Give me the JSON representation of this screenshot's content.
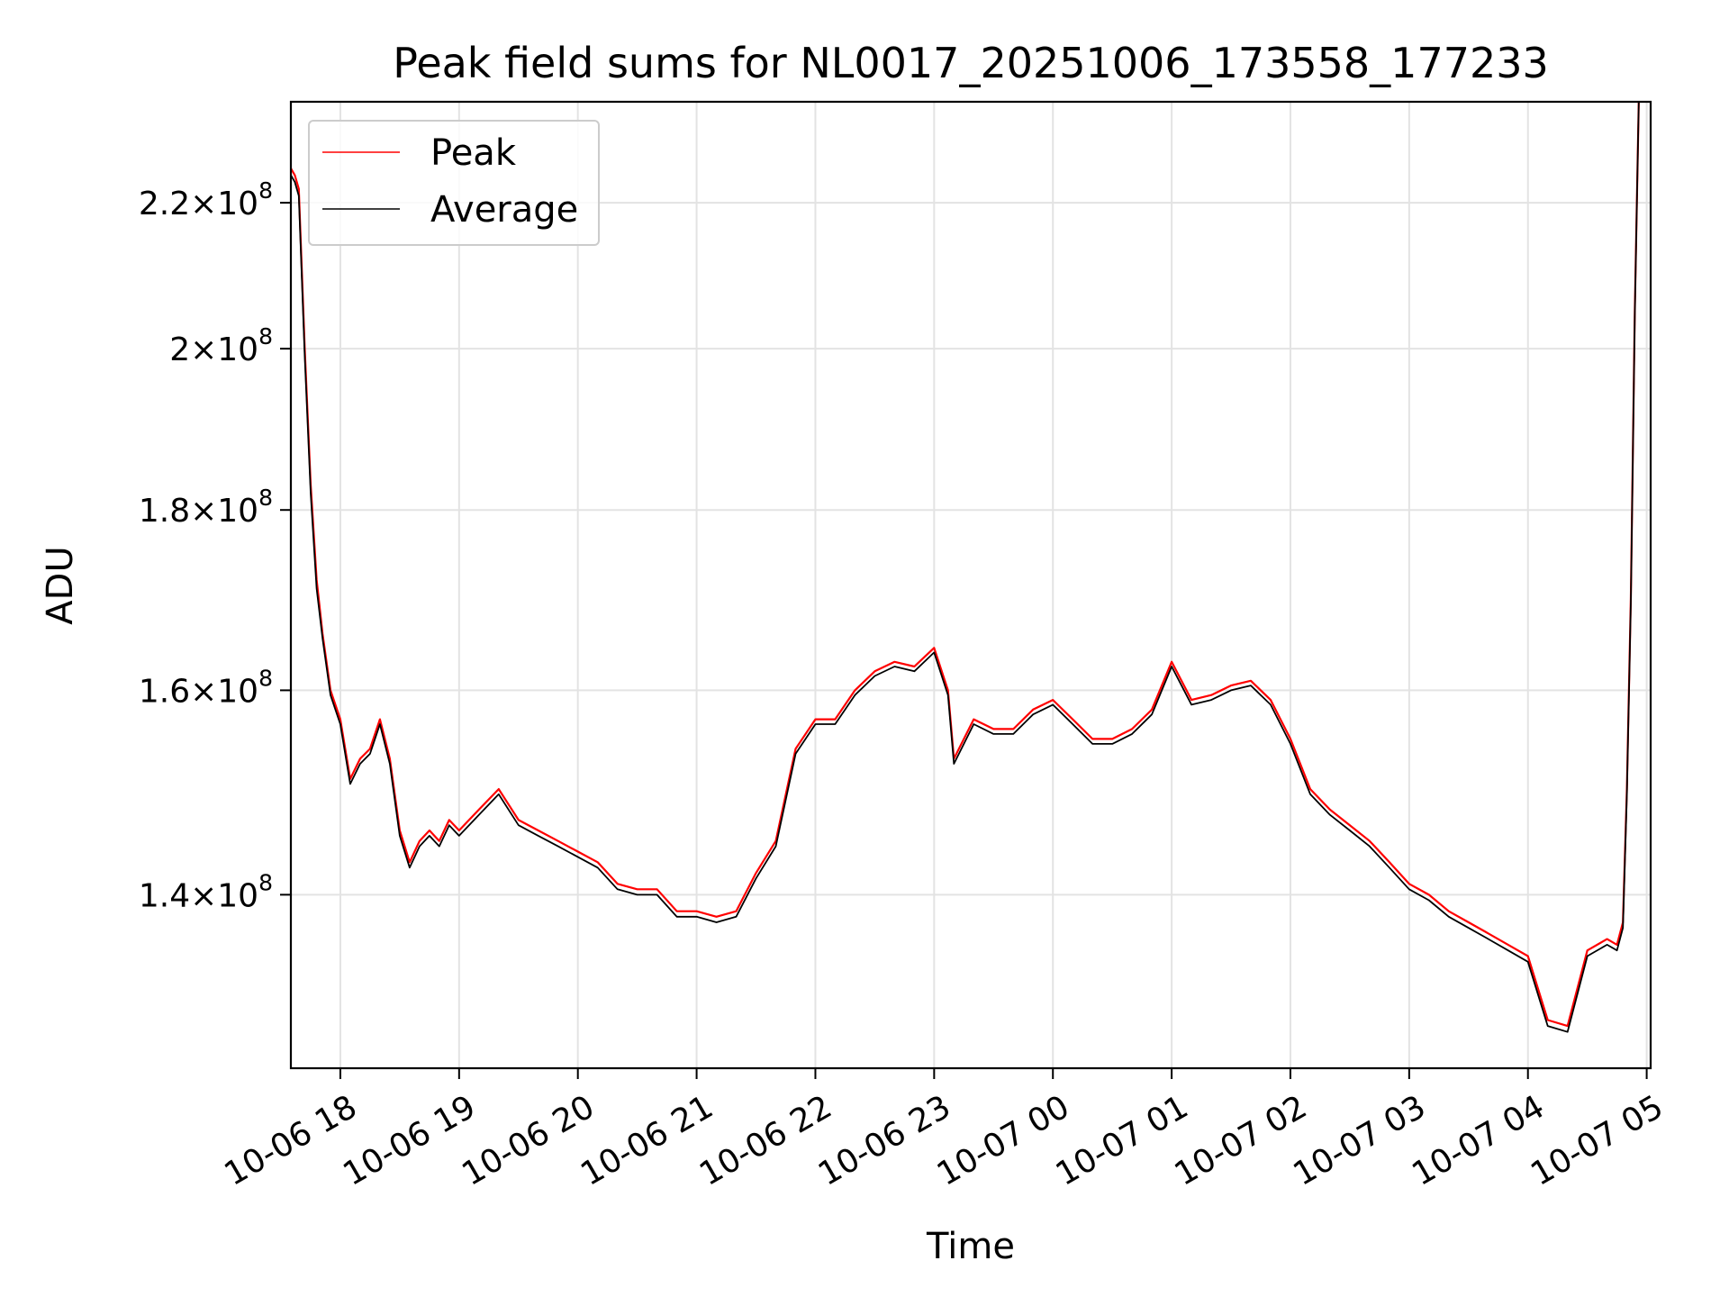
{
  "chart_data": {
    "type": "line",
    "title": "Peak field sums for NL0017_20251006_173558_177233",
    "xlabel": "Time",
    "ylabel": "ADU",
    "y_scale": "log",
    "ylim": [
      125000000,
      235000000
    ],
    "xlim": [
      "2025-10-06 17:35",
      "2025-10-07 05:02"
    ],
    "grid": true,
    "legend_position": "upper left",
    "x_ticks": [
      {
        "t": "2025-10-06 18:00",
        "label": "10-06 18"
      },
      {
        "t": "2025-10-06 19:00",
        "label": "10-06 19"
      },
      {
        "t": "2025-10-06 20:00",
        "label": "10-06 20"
      },
      {
        "t": "2025-10-06 21:00",
        "label": "10-06 21"
      },
      {
        "t": "2025-10-06 22:00",
        "label": "10-06 22"
      },
      {
        "t": "2025-10-06 23:00",
        "label": "10-06 23"
      },
      {
        "t": "2025-10-07 00:00",
        "label": "10-07 00"
      },
      {
        "t": "2025-10-07 01:00",
        "label": "10-07 01"
      },
      {
        "t": "2025-10-07 02:00",
        "label": "10-07 02"
      },
      {
        "t": "2025-10-07 03:00",
        "label": "10-07 03"
      },
      {
        "t": "2025-10-07 04:00",
        "label": "10-07 04"
      },
      {
        "t": "2025-10-07 05:00",
        "label": "10-07 05"
      }
    ],
    "y_ticks": [
      {
        "value": 140000000,
        "mantissa": "1.4",
        "exponent": "8"
      },
      {
        "value": 160000000,
        "mantissa": "1.6",
        "exponent": "8"
      },
      {
        "value": 180000000,
        "mantissa": "1.8",
        "exponent": "8"
      },
      {
        "value": 200000000,
        "mantissa": "2",
        "exponent": "8"
      },
      {
        "value": 220000000,
        "mantissa": "2.2",
        "exponent": "8"
      }
    ],
    "series": [
      {
        "name": "Peak",
        "color": "#ff0000",
        "x": [
          "2025-10-06 17:35",
          "2025-10-06 17:37",
          "2025-10-06 17:39",
          "2025-10-06 17:42",
          "2025-10-06 17:45",
          "2025-10-06 17:48",
          "2025-10-06 17:51",
          "2025-10-06 17:55",
          "2025-10-06 18:00",
          "2025-10-06 18:05",
          "2025-10-06 18:10",
          "2025-10-06 18:15",
          "2025-10-06 18:20",
          "2025-10-06 18:25",
          "2025-10-06 18:30",
          "2025-10-06 18:35",
          "2025-10-06 18:40",
          "2025-10-06 18:45",
          "2025-10-06 18:50",
          "2025-10-06 18:55",
          "2025-10-06 19:00",
          "2025-10-06 19:10",
          "2025-10-06 19:20",
          "2025-10-06 19:30",
          "2025-10-06 19:40",
          "2025-10-06 19:50",
          "2025-10-06 20:00",
          "2025-10-06 20:10",
          "2025-10-06 20:20",
          "2025-10-06 20:30",
          "2025-10-06 20:40",
          "2025-10-06 20:50",
          "2025-10-06 21:00",
          "2025-10-06 21:10",
          "2025-10-06 21:20",
          "2025-10-06 21:30",
          "2025-10-06 21:40",
          "2025-10-06 21:50",
          "2025-10-06 22:00",
          "2025-10-06 22:10",
          "2025-10-06 22:20",
          "2025-10-06 22:30",
          "2025-10-06 22:40",
          "2025-10-06 22:50",
          "2025-10-06 23:00",
          "2025-10-06 23:07",
          "2025-10-06 23:10",
          "2025-10-06 23:20",
          "2025-10-06 23:30",
          "2025-10-06 23:40",
          "2025-10-06 23:50",
          "2025-10-07 00:00",
          "2025-10-07 00:10",
          "2025-10-07 00:20",
          "2025-10-07 00:30",
          "2025-10-07 00:40",
          "2025-10-07 00:50",
          "2025-10-07 01:00",
          "2025-10-07 01:10",
          "2025-10-07 01:20",
          "2025-10-07 01:30",
          "2025-10-07 01:40",
          "2025-10-07 01:50",
          "2025-10-07 02:00",
          "2025-10-07 02:10",
          "2025-10-07 02:20",
          "2025-10-07 02:30",
          "2025-10-07 02:40",
          "2025-10-07 02:50",
          "2025-10-07 03:00",
          "2025-10-07 03:10",
          "2025-10-07 03:20",
          "2025-10-07 03:30",
          "2025-10-07 03:40",
          "2025-10-07 03:50",
          "2025-10-07 04:00",
          "2025-10-07 04:10",
          "2025-10-07 04:20",
          "2025-10-07 04:30",
          "2025-10-07 04:40",
          "2025-10-07 04:45",
          "2025-10-07 04:48",
          "2025-10-07 04:50",
          "2025-10-07 04:52",
          "2025-10-07 04:54",
          "2025-10-07 04:56"
        ],
        "values": [
          225000000,
          224000000,
          222000000,
          200000000,
          183000000,
          172000000,
          166000000,
          160000000,
          157000000,
          151000000,
          153000000,
          154000000,
          157000000,
          153000000,
          146000000,
          143000000,
          145000000,
          146000000,
          145000000,
          147000000,
          146000000,
          148000000,
          150000000,
          147000000,
          146000000,
          145000000,
          144000000,
          143000000,
          141000000,
          140500000,
          140500000,
          138500000,
          138500000,
          138000000,
          138500000,
          142000000,
          145000000,
          154000000,
          157000000,
          157000000,
          160000000,
          162000000,
          163000000,
          162500000,
          164500000,
          160000000,
          153000000,
          157000000,
          156000000,
          156000000,
          158000000,
          159000000,
          157000000,
          155000000,
          155000000,
          156000000,
          158000000,
          163000000,
          159000000,
          159500000,
          160500000,
          161000000,
          159000000,
          155000000,
          150000000,
          148000000,
          146500000,
          145000000,
          143000000,
          141000000,
          140000000,
          138500000,
          137500000,
          136500000,
          135500000,
          134500000,
          129000000,
          128500000,
          135000000,
          136000000,
          135500000,
          137500000,
          150000000,
          170000000,
          205000000,
          235000000
        ]
      },
      {
        "name": "Average",
        "color": "#000000",
        "x": [
          "2025-10-06 17:35",
          "2025-10-06 17:37",
          "2025-10-06 17:39",
          "2025-10-06 17:42",
          "2025-10-06 17:45",
          "2025-10-06 17:48",
          "2025-10-06 17:51",
          "2025-10-06 17:55",
          "2025-10-06 18:00",
          "2025-10-06 18:05",
          "2025-10-06 18:10",
          "2025-10-06 18:15",
          "2025-10-06 18:20",
          "2025-10-06 18:25",
          "2025-10-06 18:30",
          "2025-10-06 18:35",
          "2025-10-06 18:40",
          "2025-10-06 18:45",
          "2025-10-06 18:50",
          "2025-10-06 18:55",
          "2025-10-06 19:00",
          "2025-10-06 19:10",
          "2025-10-06 19:20",
          "2025-10-06 19:30",
          "2025-10-06 19:40",
          "2025-10-06 19:50",
          "2025-10-06 20:00",
          "2025-10-06 20:10",
          "2025-10-06 20:20",
          "2025-10-06 20:30",
          "2025-10-06 20:40",
          "2025-10-06 20:50",
          "2025-10-06 21:00",
          "2025-10-06 21:10",
          "2025-10-06 21:20",
          "2025-10-06 21:30",
          "2025-10-06 21:40",
          "2025-10-06 21:50",
          "2025-10-06 22:00",
          "2025-10-06 22:10",
          "2025-10-06 22:20",
          "2025-10-06 22:30",
          "2025-10-06 22:40",
          "2025-10-06 22:50",
          "2025-10-06 23:00",
          "2025-10-06 23:07",
          "2025-10-06 23:10",
          "2025-10-06 23:20",
          "2025-10-06 23:30",
          "2025-10-06 23:40",
          "2025-10-06 23:50",
          "2025-10-07 00:00",
          "2025-10-07 00:10",
          "2025-10-07 00:20",
          "2025-10-07 00:30",
          "2025-10-07 00:40",
          "2025-10-07 00:50",
          "2025-10-07 01:00",
          "2025-10-07 01:10",
          "2025-10-07 01:20",
          "2025-10-07 01:30",
          "2025-10-07 01:40",
          "2025-10-07 01:50",
          "2025-10-07 02:00",
          "2025-10-07 02:10",
          "2025-10-07 02:20",
          "2025-10-07 02:30",
          "2025-10-07 02:40",
          "2025-10-07 02:50",
          "2025-10-07 03:00",
          "2025-10-07 03:10",
          "2025-10-07 03:20",
          "2025-10-07 03:30",
          "2025-10-07 03:40",
          "2025-10-07 03:50",
          "2025-10-07 04:00",
          "2025-10-07 04:10",
          "2025-10-07 04:20",
          "2025-10-07 04:30",
          "2025-10-07 04:40",
          "2025-10-07 04:45",
          "2025-10-07 04:48",
          "2025-10-07 04:50",
          "2025-10-07 04:52",
          "2025-10-07 04:54",
          "2025-10-07 04:56"
        ],
        "values": [
          224000000,
          223000000,
          221000000,
          199000000,
          182000000,
          171000000,
          165500000,
          159500000,
          156500000,
          150500000,
          152500000,
          153500000,
          156500000,
          152500000,
          145500000,
          142500000,
          144500000,
          145500000,
          144500000,
          146500000,
          145500000,
          147500000,
          149500000,
          146500000,
          145500000,
          144500000,
          143500000,
          142500000,
          140500000,
          140000000,
          140000000,
          138000000,
          138000000,
          137500000,
          138000000,
          141500000,
          144500000,
          153500000,
          156500000,
          156500000,
          159500000,
          161500000,
          162500000,
          162000000,
          164000000,
          159500000,
          152500000,
          156500000,
          155500000,
          155500000,
          157500000,
          158500000,
          156500000,
          154500000,
          154500000,
          155500000,
          157500000,
          162500000,
          158500000,
          159000000,
          160000000,
          160500000,
          158500000,
          154500000,
          149500000,
          147500000,
          146000000,
          144500000,
          142500000,
          140500000,
          139500000,
          138000000,
          137000000,
          136000000,
          135000000,
          134000000,
          128500000,
          128000000,
          134500000,
          135500000,
          135000000,
          137000000,
          149500000,
          169500000,
          204500000,
          235000000
        ]
      }
    ]
  }
}
